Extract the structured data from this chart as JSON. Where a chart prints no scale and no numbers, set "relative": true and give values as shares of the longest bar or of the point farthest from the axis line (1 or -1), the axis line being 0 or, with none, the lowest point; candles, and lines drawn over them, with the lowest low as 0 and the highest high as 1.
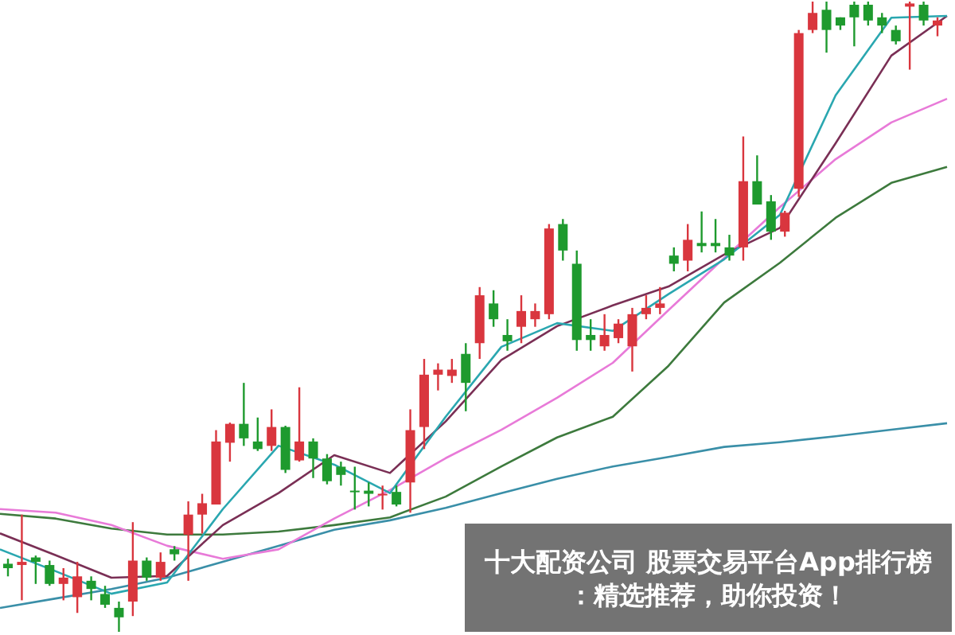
{
  "chart_data": [
    {
      "type": "candlestick",
      "title": "十大配资公司 股票交易平台App排行榜：精选推荐，助你投资！",
      "relative": true,
      "categories": [
        null,
        null,
        null,
        null,
        null,
        null,
        null,
        null,
        null,
        null,
        null,
        null,
        null,
        null,
        null,
        null,
        null,
        null,
        null,
        null,
        null,
        null,
        null,
        null,
        null,
        null,
        null,
        null,
        null,
        null,
        null,
        null,
        null,
        null,
        null,
        null,
        null,
        null,
        null,
        null,
        null,
        null,
        null,
        null,
        null,
        null,
        null,
        null,
        null,
        null,
        null,
        null,
        null,
        null,
        null,
        null,
        null,
        null,
        null,
        null,
        null,
        null,
        null,
        null,
        null,
        null,
        null,
        null
      ],
      "ohlc": [
        [
          0.108,
          0.116,
          0.088,
          0.101
        ],
        [
          0.106,
          0.186,
          0.05,
          0.111
        ],
        [
          0.118,
          0.121,
          0.076,
          0.111
        ],
        [
          0.106,
          0.113,
          0.073,
          0.076
        ],
        [
          0.076,
          0.101,
          0.05,
          0.086
        ],
        [
          0.055,
          0.111,
          0.03,
          0.088
        ],
        [
          0.081,
          0.088,
          0.05,
          0.068
        ],
        [
          0.06,
          0.073,
          0.038,
          0.043
        ],
        [
          0.038,
          0.048,
          0,
          0.023
        ],
        [
          0.048,
          0.174,
          0.025,
          0.113
        ],
        [
          0.113,
          0.118,
          0.081,
          0.086
        ],
        [
          0.086,
          0.126,
          0.081,
          0.111
        ],
        [
          0.131,
          0.136,
          0.113,
          0.123
        ],
        [
          0.154,
          0.207,
          0.081,
          0.186
        ],
        [
          0.186,
          0.219,
          0.156,
          0.204
        ],
        [
          0.202,
          0.32,
          0.202,
          0.302
        ],
        [
          0.3,
          0.332,
          0.27,
          0.33
        ],
        [
          0.33,
          0.395,
          0.295,
          0.307
        ],
        [
          0.302,
          0.34,
          0.287,
          0.29
        ],
        [
          0.295,
          0.353,
          0.287,
          0.325
        ],
        [
          0.325,
          0.327,
          0.252,
          0.257
        ],
        [
          0.272,
          0.388,
          0.27,
          0.302
        ],
        [
          0.302,
          0.307,
          0.244,
          0.275
        ],
        [
          0.275,
          0.282,
          0.234,
          0.239
        ],
        [
          0.262,
          0.27,
          0.232,
          0.249
        ],
        [
          0.224,
          0.262,
          0.194,
          0.222
        ],
        [
          0.224,
          0.237,
          0.199,
          0.219
        ],
        [
          0.217,
          0.232,
          0.194,
          0.219
        ],
        [
          0.222,
          0.232,
          0.199,
          0.202
        ],
        [
          0.237,
          0.353,
          0.189,
          0.32
        ],
        [
          0.325,
          0.433,
          0.29,
          0.408
        ],
        [
          0.408,
          0.426,
          0.383,
          0.416
        ],
        [
          0.406,
          0.433,
          0.395,
          0.416
        ],
        [
          0.441,
          0.458,
          0.35,
          0.395
        ],
        [
          0.458,
          0.547,
          0.433,
          0.534
        ],
        [
          0.521,
          0.542,
          0.484,
          0.496
        ],
        [
          0.471,
          0.496,
          0.446,
          0.461
        ],
        [
          0.484,
          0.534,
          0.458,
          0.509
        ],
        [
          0.496,
          0.521,
          0.484,
          0.509
        ],
        [
          0.504,
          0.647,
          0.496,
          0.64
        ],
        [
          0.647,
          0.655,
          0.589,
          0.605
        ],
        [
          0.584,
          0.605,
          0.446,
          0.463
        ],
        [
          0.471,
          0.496,
          0.446,
          0.463
        ],
        [
          0.453,
          0.504,
          0.446,
          0.471
        ],
        [
          0.466,
          0.496,
          0.458,
          0.489
        ],
        [
          0.453,
          0.514,
          0.413,
          0.504
        ],
        [
          0.504,
          0.534,
          0.496,
          0.514
        ],
        [
          0.514,
          0.547,
          0.504,
          0.521
        ],
        [
          0.597,
          0.61,
          0.572,
          0.584
        ],
        [
          0.589,
          0.647,
          0.572,
          0.622
        ],
        [
          0.617,
          0.667,
          0.602,
          0.612
        ],
        [
          0.617,
          0.655,
          0.602,
          0.612
        ],
        [
          0.61,
          0.63,
          0.589,
          0.597
        ],
        [
          0.61,
          0.786,
          0.589,
          0.715
        ],
        [
          0.715,
          0.756,
          0.678,
          0.678
        ],
        [
          0.683,
          0.693,
          0.622,
          0.635
        ],
        [
          0.635,
          0.668,
          0.627,
          0.665
        ],
        [
          0.703,
          0.955,
          0.69,
          0.95
        ],
        [
          0.955,
          1,
          0.95,
          0.982
        ],
        [
          0.987,
          1,
          0.919,
          0.955
        ],
        [
          0.975,
          0.975,
          0.955,
          0.962
        ],
        [
          0.995,
          1,
          0.929,
          0.975
        ],
        [
          0.995,
          1,
          0.962,
          0.97
        ],
        [
          0.975,
          0.982,
          0.95,
          0.962
        ],
        [
          0.955,
          0.962,
          0.932,
          0.937
        ],
        [
          0.992,
          1,
          0.892,
          0.997
        ],
        [
          0.995,
          1,
          0.962,
          0.97
        ],
        [
          0.962,
          0.975,
          0.945,
          0.97
        ]
      ],
      "colors": [
        "#1e9a2e",
        "#d9363e",
        "#1e9a2e",
        "#1e9a2e",
        "#d9363e",
        "#d9363e",
        "#1e9a2e",
        "#1e9a2e",
        "#1e9a2e",
        "#d9363e",
        "#1e9a2e",
        "#d9363e",
        "#1e9a2e",
        "#d9363e",
        "#d9363e",
        "#d9363e",
        "#d9363e",
        "#1e9a2e",
        "#1e9a2e",
        "#d9363e",
        "#1e9a2e",
        "#d9363e",
        "#1e9a2e",
        "#1e9a2e",
        "#1e9a2e",
        "#1e9a2e",
        "#1e9a2e",
        "#d9363e",
        "#1e9a2e",
        "#d9363e",
        "#d9363e",
        "#d9363e",
        "#d9363e",
        "#1e9a2e",
        "#d9363e",
        "#1e9a2e",
        "#1e9a2e",
        "#d9363e",
        "#d9363e",
        "#d9363e",
        "#1e9a2e",
        "#1e9a2e",
        "#1e9a2e",
        "#d9363e",
        "#d9363e",
        "#d9363e",
        "#d9363e",
        "#d9363e",
        "#1e9a2e",
        "#d9363e",
        "#1e9a2e",
        "#1e9a2e",
        "#1e9a2e",
        "#d9363e",
        "#1e9a2e",
        "#1e9a2e",
        "#d9363e",
        "#d9363e",
        "#d9363e",
        "#1e9a2e",
        "#1e9a2e",
        "#1e9a2e",
        "#1e9a2e",
        "#1e9a2e",
        "#1e9a2e",
        "#d9363e",
        "#1e9a2e",
        "#d9363e"
      ]
    },
    {
      "type": "line",
      "relative": true,
      "categories": [
        null,
        null,
        null,
        null,
        null,
        null,
        null,
        null,
        null,
        null,
        null,
        null,
        null,
        null,
        null,
        null,
        null,
        null
      ],
      "series": [
        {
          "color": "#3a8fa8",
          "values": [
            0,
            0.016,
            0.032,
            0.051,
            0.078,
            0.105,
            0.132,
            0.148,
            0.169,
            0.194,
            0.218,
            0.239,
            0.255,
            0.272,
            0.28,
            0.29,
            0.301,
            0.312
          ]
        },
        {
          "color": "#3d7a3d",
          "values": [
            0.159,
            0.151,
            0.134,
            0.124,
            0.124,
            0.129,
            0.14,
            0.153,
            0.188,
            0.239,
            0.288,
            0.323,
            0.409,
            0.516,
            0.583,
            0.659,
            0.718,
            0.745
          ]
        },
        {
          "color": "#e87ad8",
          "values": [
            0.167,
            0.161,
            0.14,
            0.105,
            0.083,
            0.099,
            0.151,
            0.199,
            0.253,
            0.301,
            0.355,
            0.414,
            0.503,
            0.591,
            0.677,
            0.758,
            0.82,
            0.86
          ]
        },
        {
          "color": "#7a2f55",
          "values": [
            0.126,
            0.089,
            0.051,
            0.054,
            0.14,
            0.194,
            0.258,
            0.228,
            0.315,
            0.419,
            0.476,
            0.511,
            0.543,
            0.597,
            0.642,
            0.785,
            0.933,
            1
          ]
        },
        {
          "color": "#2aa7b0",
          "values": [
            0.099,
            0.062,
            0.024,
            0.043,
            0.167,
            0.274,
            0.242,
            0.194,
            0.323,
            0.441,
            0.481,
            0.468,
            0.53,
            0.589,
            0.664,
            0.866,
            0.997,
            1
          ]
        }
      ]
    }
  ]
}
